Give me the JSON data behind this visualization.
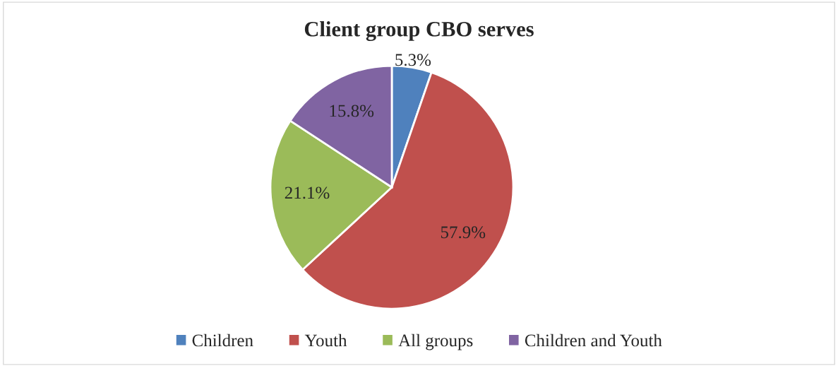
{
  "chart_data": {
    "type": "pie",
    "title": "Client group CBO serves",
    "categories": [
      "Children",
      "Youth",
      "All groups",
      "Children and Youth"
    ],
    "values": [
      5.3,
      57.9,
      21.1,
      15.8
    ],
    "value_labels": [
      "5.3%",
      "57.9%",
      "21.1%",
      "15.8%"
    ],
    "colors": [
      "#4f81bd",
      "#c0504d",
      "#9bbb59",
      "#8064a2"
    ],
    "legend": "bottom"
  }
}
